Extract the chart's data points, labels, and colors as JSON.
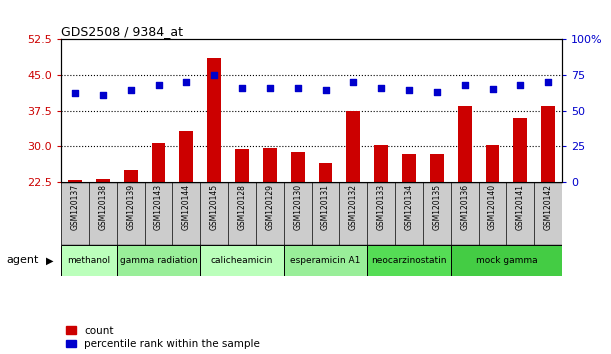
{
  "title": "GDS2508 / 9384_at",
  "samples": [
    "GSM120137",
    "GSM120138",
    "GSM120139",
    "GSM120143",
    "GSM120144",
    "GSM120145",
    "GSM120128",
    "GSM120129",
    "GSM120130",
    "GSM120131",
    "GSM120132",
    "GSM120133",
    "GSM120134",
    "GSM120135",
    "GSM120136",
    "GSM120140",
    "GSM120141",
    "GSM120142"
  ],
  "counts": [
    23.0,
    23.2,
    25.0,
    30.8,
    33.2,
    48.5,
    29.5,
    29.7,
    28.8,
    26.5,
    37.5,
    30.3,
    28.5,
    28.5,
    38.5,
    30.2,
    36.0,
    38.5
  ],
  "percentiles": [
    62,
    61,
    64,
    68,
    70,
    75,
    66,
    66,
    66,
    64,
    70,
    66,
    64,
    63,
    68,
    65,
    68,
    70
  ],
  "groups": [
    {
      "label": "methanol",
      "color": "#bbffbb",
      "start": 0,
      "end": 2
    },
    {
      "label": "gamma radiation",
      "color": "#99ee99",
      "start": 2,
      "end": 5
    },
    {
      "label": "calicheamicin",
      "color": "#bbffbb",
      "start": 5,
      "end": 8
    },
    {
      "label": "esperamicin A1",
      "color": "#99ee99",
      "start": 8,
      "end": 11
    },
    {
      "label": "neocarzinostatin",
      "color": "#55dd55",
      "start": 11,
      "end": 14
    },
    {
      "label": "mock gamma",
      "color": "#44cc44",
      "start": 14,
      "end": 18
    }
  ],
  "ylim_left": [
    22.5,
    52.5
  ],
  "ylim_right": [
    0,
    100
  ],
  "yticks_left": [
    22.5,
    30,
    37.5,
    45,
    52.5
  ],
  "yticks_right": [
    0,
    25,
    50,
    75,
    100
  ],
  "ytick_right_labels": [
    "0",
    "25",
    "50",
    "75",
    "100%"
  ],
  "hgrid_lines": [
    30,
    37.5,
    45
  ],
  "bar_color": "#cc0000",
  "dot_color": "#0000cc",
  "tick_bg_color": "#cccccc",
  "agent_label": "agent"
}
